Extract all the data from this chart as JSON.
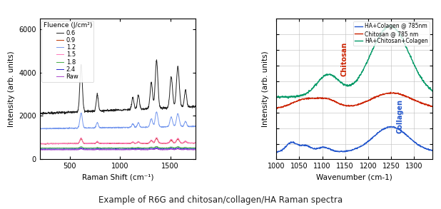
{
  "fig_width": 6.18,
  "fig_height": 2.93,
  "caption": "Example of R6G and chitosan/collagen/HA Raman spectra",
  "left_plot": {
    "xlabel": "Raman Shift (cm⁻¹)",
    "ylabel": "Intensity (arb. units)",
    "xlim": [
      200,
      1750
    ],
    "ylim": [
      0,
      6500
    ],
    "yticks": [
      0,
      2000,
      4000,
      6000
    ],
    "xticks": [
      500,
      1000,
      1500
    ],
    "legend_title": "Fluence (J/cm²)",
    "legend_entries": [
      "0.6",
      "0.9",
      "1.2",
      "1.5",
      "1.8",
      "2.4",
      "Raw"
    ],
    "line_colors": [
      "#222222",
      "#bb3300",
      "#7799ee",
      "#ff77bb",
      "#44aa44",
      "#2222cc",
      "#aa44cc"
    ]
  },
  "right_plot": {
    "xlabel": "Wavenumber (cm-1)",
    "ylabel": "Intensity (arb. units)",
    "xlim": [
      1000,
      1340
    ],
    "xticks": [
      1000,
      1050,
      1100,
      1150,
      1200,
      1250,
      1300
    ],
    "legend_entries": [
      "HA+Colagen @ 785nm",
      "Chitosan @ 785 nm",
      "HA+Chitosan+Colagen"
    ],
    "line_colors": [
      "#2255cc",
      "#cc2200",
      "#009966"
    ],
    "chitosan_label_color": "#cc2200",
    "collagen_label_color": "#2255cc",
    "grid": true
  }
}
